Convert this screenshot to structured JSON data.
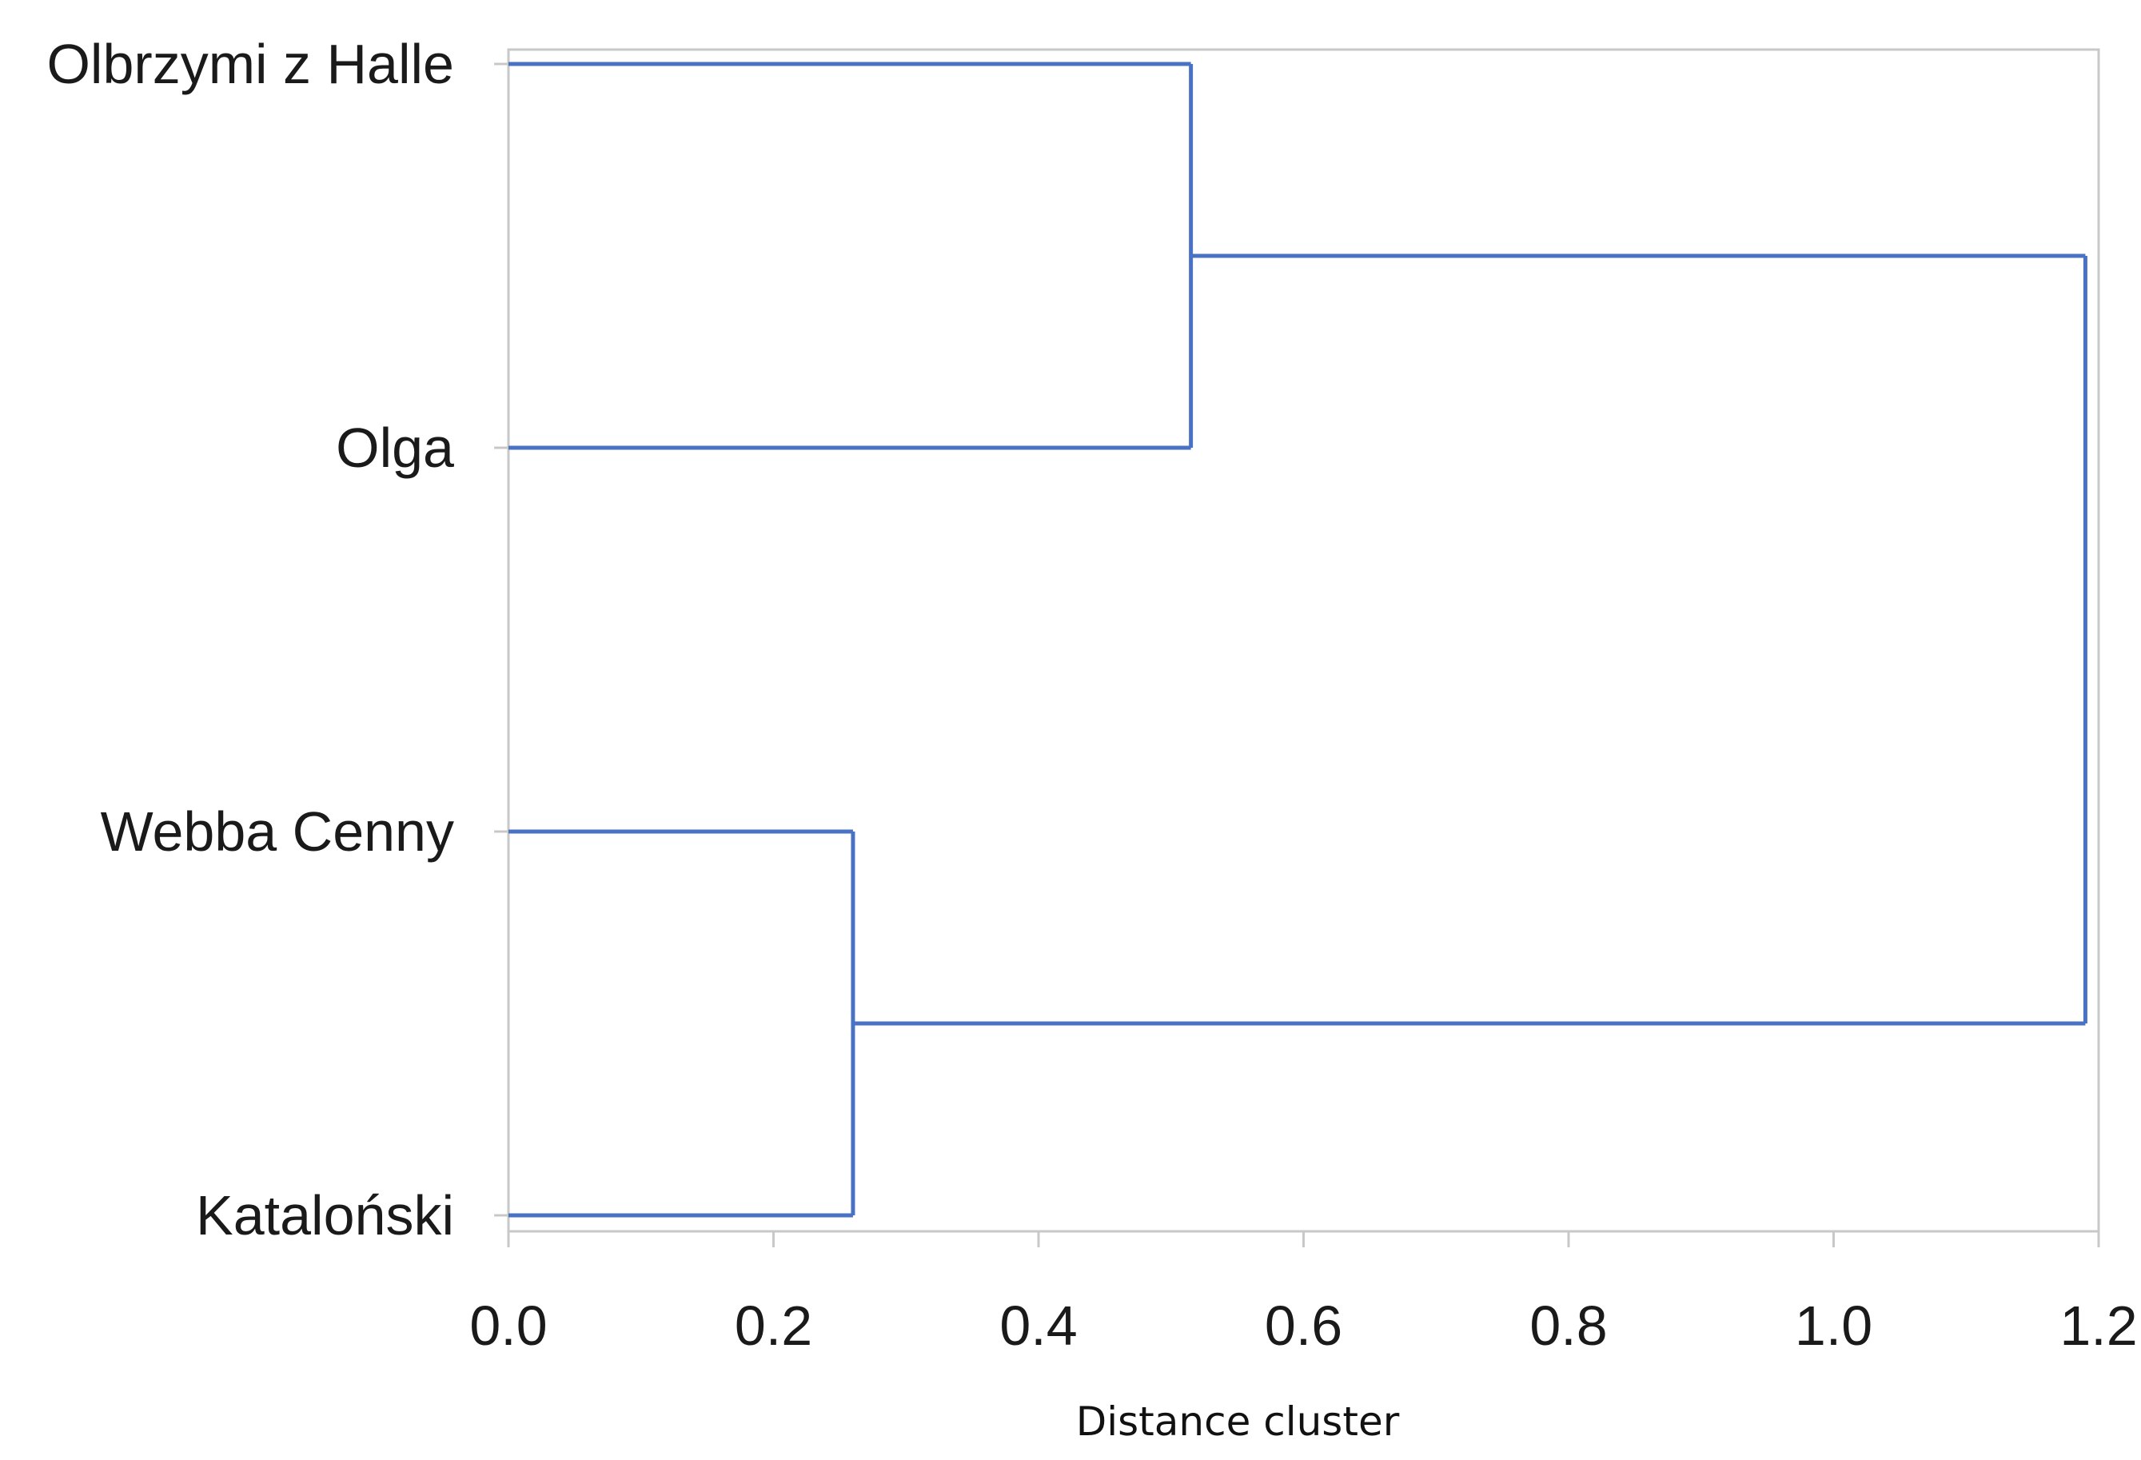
{
  "chart_data": {
    "type": "dendrogram",
    "orientation": "horizontal",
    "title": "",
    "xlabel": "Distance cluster",
    "ylabel": "",
    "xlim": [
      0.0,
      1.2
    ],
    "xticks": [
      "0.0",
      "0.2",
      "0.4",
      "0.6",
      "0.8",
      "1.0",
      "1.2"
    ],
    "xtick_values": [
      0.0,
      0.2,
      0.4,
      0.6,
      0.8,
      1.0,
      1.2
    ],
    "leaves": [
      "Olbrzymi z Halle",
      "Olga",
      "Webba Cenny",
      "Kataloński"
    ],
    "merges": [
      {
        "a": 0,
        "b": 1,
        "distance": 0.515
      },
      {
        "a": 2,
        "b": 3,
        "distance": 0.26
      },
      {
        "a": 4,
        "b": 5,
        "distance": 1.19
      }
    ],
    "grid": false
  },
  "colors": {
    "branch": "#4a72c4",
    "frame": "#c8c8c8",
    "text": "#1a1a1a"
  }
}
